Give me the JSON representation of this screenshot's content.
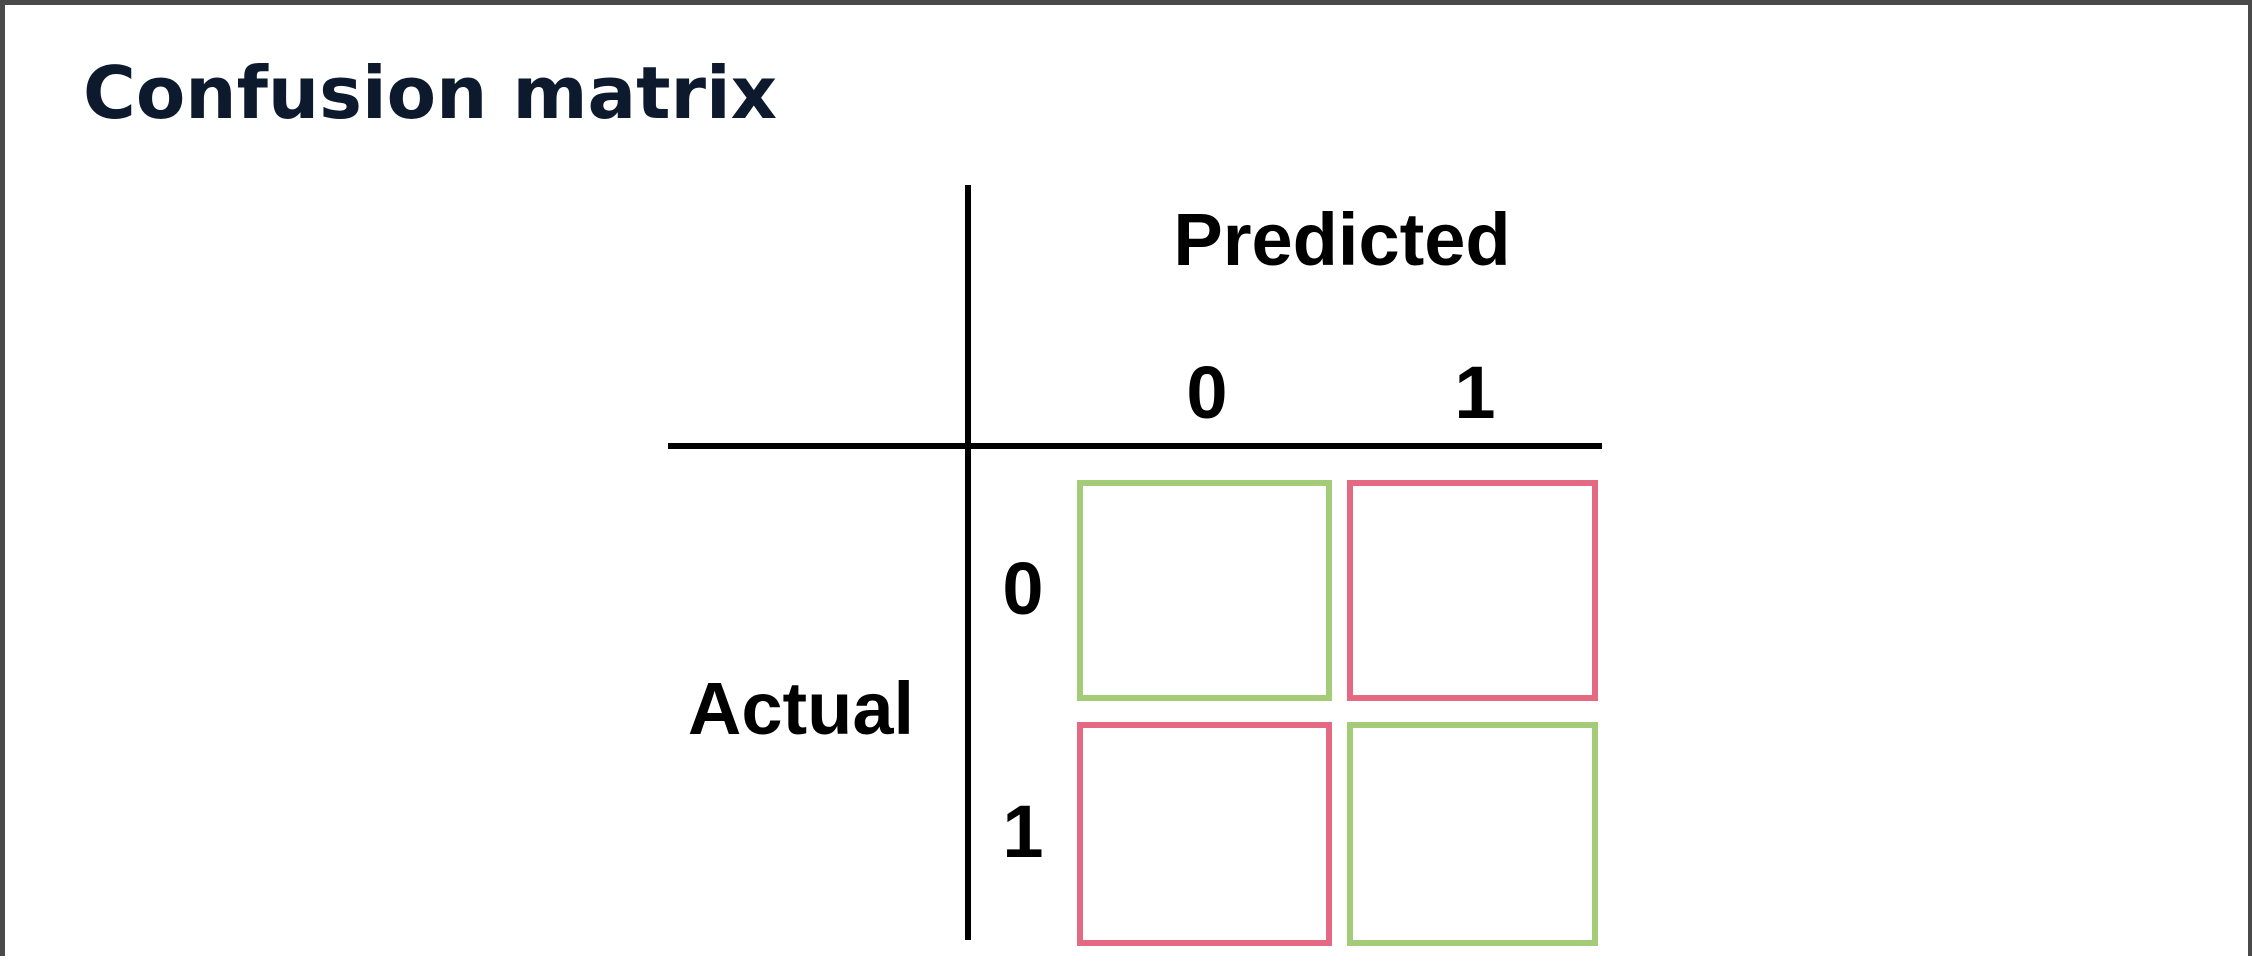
{
  "title": "Confusion matrix",
  "matrix": {
    "column_axis_label": "Predicted",
    "row_axis_label": "Actual",
    "column_labels": [
      "0",
      "1"
    ],
    "row_labels": [
      "0",
      "1"
    ],
    "cells": [
      {
        "row": "0",
        "column": "0",
        "outcome": "correct",
        "color": "#a4cc78"
      },
      {
        "row": "0",
        "column": "1",
        "outcome": "incorrect",
        "color": "#e46a84"
      },
      {
        "row": "1",
        "column": "0",
        "outcome": "incorrect",
        "color": "#e46a84"
      },
      {
        "row": "1",
        "column": "1",
        "outcome": "correct",
        "color": "#a4cc78"
      }
    ]
  },
  "colors": {
    "title": "#0d1a2e",
    "frame": "#4a4a4a",
    "correct": "#a4cc78",
    "incorrect": "#e46a84",
    "lines": "#000000"
  }
}
